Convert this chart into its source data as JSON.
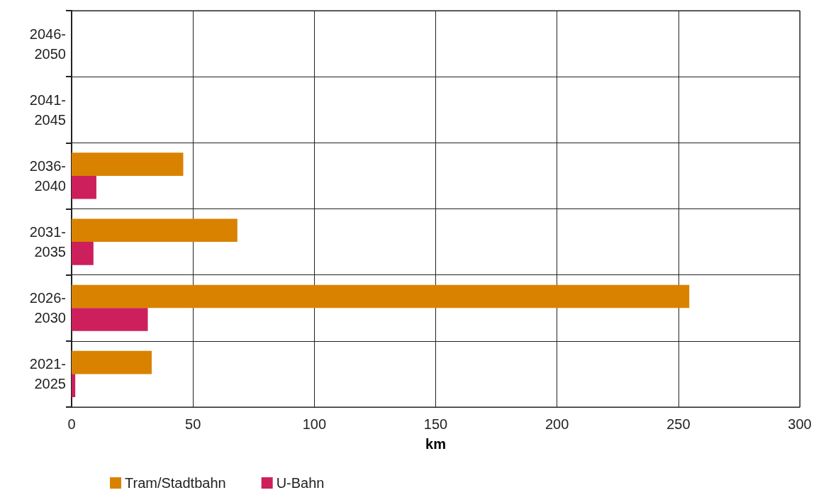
{
  "chart_data": {
    "type": "bar",
    "orientation": "horizontal",
    "xlabel": "km",
    "categories": [
      "2046-2050",
      "2041-2045",
      "2036-2040",
      "2031-2035",
      "2026-2030",
      "2021-2025"
    ],
    "series": [
      {
        "name": "Tram/Stadtbahn",
        "color": "#d98200",
        "values": [
          null,
          null,
          46,
          68.3,
          254.5,
          33
        ]
      },
      {
        "name": "U-Bahn",
        "color": "#cc1f5c",
        "values": [
          null,
          null,
          10.2,
          9,
          31.4,
          1.5
        ]
      }
    ],
    "xlim": [
      0,
      300
    ],
    "xticks": [
      0,
      50,
      100,
      150,
      200,
      250,
      300
    ],
    "grid": true,
    "legend": "bottom"
  }
}
